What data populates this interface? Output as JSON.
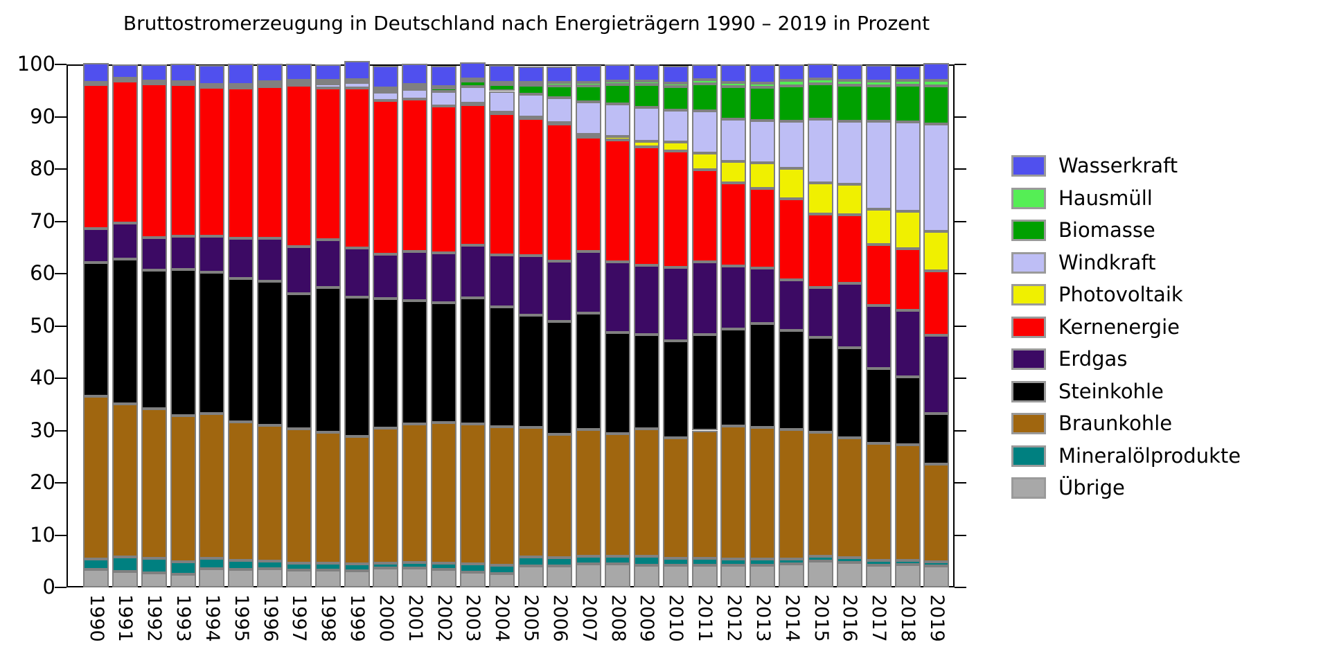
{
  "title": "Bruttostromerzeugung in Deutschland nach Energieträgern 1990 – 2019 in Prozent",
  "chart_data": {
    "type": "bar",
    "stacked": true,
    "unit": "percent",
    "title": "Bruttostromerzeugung in Deutschland nach Energieträgern 1990 – 2019 in Prozent",
    "xlabel": "",
    "ylabel": "",
    "ylim": [
      0,
      100
    ],
    "yticks": [
      0,
      10,
      20,
      30,
      40,
      50,
      60,
      70,
      80,
      90,
      100
    ],
    "grid": false,
    "legend_position": "right",
    "legend_order_top_to_bottom": [
      "Wasserkraft",
      "Hausmüll",
      "Biomasse",
      "Windkraft",
      "Photovoltaik",
      "Kernenergie",
      "Erdgas",
      "Steinkohle",
      "Braunkohle",
      "Mineralölprodukte",
      "Übrige"
    ],
    "categories": [
      "1990",
      "1991",
      "1992",
      "1993",
      "1994",
      "1995",
      "1996",
      "1997",
      "1998",
      "1999",
      "2000",
      "2001",
      "2002",
      "2003",
      "2004",
      "2005",
      "2006",
      "2007",
      "2008",
      "2009",
      "2010",
      "2011",
      "2012",
      "2013",
      "2014",
      "2015",
      "2016",
      "2017",
      "2018",
      "2019"
    ],
    "series": [
      {
        "name": "Übrige",
        "color": "#A8A8A8",
        "values": [
          3.4,
          3.0,
          2.8,
          2.5,
          3.6,
          3.4,
          3.6,
          3.3,
          3.3,
          3.2,
          3.7,
          3.7,
          3.5,
          2.9,
          2.6,
          4.1,
          4.1,
          4.5,
          4.5,
          4.2,
          4.2,
          4.3,
          4.2,
          4.3,
          4.5,
          5.0,
          4.8,
          4.2,
          4.4,
          4.1
        ]
      },
      {
        "name": "Mineralölprodukte",
        "color": "#008080",
        "values": [
          2.0,
          2.8,
          2.7,
          2.4,
          2.0,
          1.7,
          1.4,
          1.3,
          1.3,
          1.3,
          1.0,
          1.1,
          1.1,
          1.6,
          1.6,
          1.7,
          1.6,
          1.5,
          1.4,
          1.7,
          1.4,
          1.2,
          1.2,
          1.1,
          0.9,
          1.0,
          0.9,
          0.9,
          0.8,
          0.8
        ]
      },
      {
        "name": "Braunkohle",
        "color": "#A0660F",
        "values": [
          31.1,
          29.3,
          28.7,
          28.0,
          27.6,
          26.6,
          26.0,
          25.7,
          25.1,
          24.4,
          25.7,
          26.4,
          26.9,
          26.7,
          26.5,
          24.8,
          23.6,
          24.2,
          23.5,
          24.4,
          23.0,
          24.5,
          25.5,
          25.2,
          24.8,
          23.7,
          22.9,
          22.5,
          22.1,
          18.7
        ]
      },
      {
        "name": "Steinkohle",
        "color": "#000000",
        "values": [
          25.6,
          27.7,
          26.4,
          27.9,
          27.0,
          27.4,
          27.5,
          25.9,
          27.6,
          26.6,
          24.8,
          23.6,
          22.9,
          24.1,
          22.9,
          21.5,
          21.6,
          22.2,
          19.4,
          18.1,
          18.5,
          18.3,
          18.5,
          19.9,
          18.9,
          18.1,
          17.2,
          14.3,
          12.9,
          9.6
        ]
      },
      {
        "name": "Erdgas",
        "color": "#3C0A64",
        "values": [
          6.5,
          6.9,
          6.3,
          6.4,
          6.9,
          7.7,
          8.2,
          9.0,
          9.2,
          9.4,
          8.5,
          9.4,
          9.6,
          10.1,
          10.0,
          11.4,
          11.5,
          11.8,
          13.5,
          13.2,
          14.1,
          14.0,
          12.1,
          10.6,
          9.7,
          9.5,
          12.4,
          12.0,
          12.8,
          15.0
        ]
      },
      {
        "name": "Kernenergie",
        "color": "#FC0000",
        "values": [
          27.7,
          27.3,
          29.5,
          29.1,
          28.6,
          28.7,
          29.1,
          30.8,
          29.0,
          30.6,
          29.4,
          29.2,
          28.1,
          27.1,
          27.1,
          26.2,
          26.2,
          21.9,
          23.2,
          22.6,
          22.2,
          17.6,
          15.8,
          15.2,
          15.5,
          14.1,
          13.1,
          11.6,
          11.8,
          12.3
        ]
      },
      {
        "name": "Photovoltaik",
        "color": "#F0F000",
        "values": [
          0.0,
          0.0,
          0.0,
          0.0,
          0.0,
          0.0,
          0.0,
          0.0,
          0.0,
          0.0,
          0.0,
          0.0,
          0.0,
          0.1,
          0.1,
          0.2,
          0.3,
          0.5,
          0.7,
          1.1,
          1.8,
          3.2,
          4.2,
          4.9,
          5.8,
          5.9,
          5.8,
          6.8,
          7.1,
          7.6
        ]
      },
      {
        "name": "Windkraft",
        "color": "#BEBEF5",
        "values": [
          0.0,
          0.0,
          0.1,
          0.1,
          0.2,
          0.3,
          0.4,
          0.5,
          0.8,
          1.0,
          1.6,
          1.8,
          2.7,
          3.1,
          4.1,
          4.4,
          4.8,
          6.2,
          6.3,
          6.5,
          6.0,
          8.0,
          8.0,
          8.1,
          9.1,
          12.2,
          12.0,
          16.8,
          17.1,
          20.5
        ]
      },
      {
        "name": "Biomasse",
        "color": "#00A000",
        "values": [
          0.1,
          0.1,
          0.1,
          0.1,
          0.1,
          0.1,
          0.2,
          0.2,
          0.3,
          0.3,
          0.5,
          0.6,
          0.7,
          1.1,
          1.2,
          1.7,
          2.2,
          3.1,
          3.6,
          4.3,
          4.5,
          5.2,
          6.2,
          6.3,
          6.7,
          6.8,
          6.9,
          6.8,
          7.0,
          7.3
        ]
      },
      {
        "name": "Hausmüll",
        "color": "#55EE55",
        "values": [
          0.2,
          0.2,
          0.2,
          0.2,
          0.2,
          0.2,
          0.3,
          0.3,
          0.3,
          0.3,
          0.3,
          0.3,
          0.3,
          0.4,
          0.4,
          0.5,
          0.6,
          0.7,
          0.7,
          0.7,
          0.7,
          0.8,
          0.8,
          0.8,
          1.0,
          0.9,
          0.9,
          0.9,
          1.0,
          1.0
        ]
      },
      {
        "name": "Wasserkraft",
        "color": "#5050EE",
        "values": [
          3.6,
          2.7,
          3.2,
          3.4,
          3.7,
          4.0,
          3.4,
          3.1,
          3.1,
          3.5,
          4.3,
          4.0,
          4.0,
          3.2,
          3.4,
          3.1,
          3.1,
          3.3,
          3.2,
          3.2,
          3.3,
          2.9,
          3.5,
          3.6,
          3.1,
          2.9,
          3.1,
          3.1,
          2.8,
          3.3
        ]
      }
    ]
  },
  "colors": {
    "background": "#ffffff",
    "frame": "#000000",
    "segment_border": "#808080",
    "text": "#000000"
  }
}
